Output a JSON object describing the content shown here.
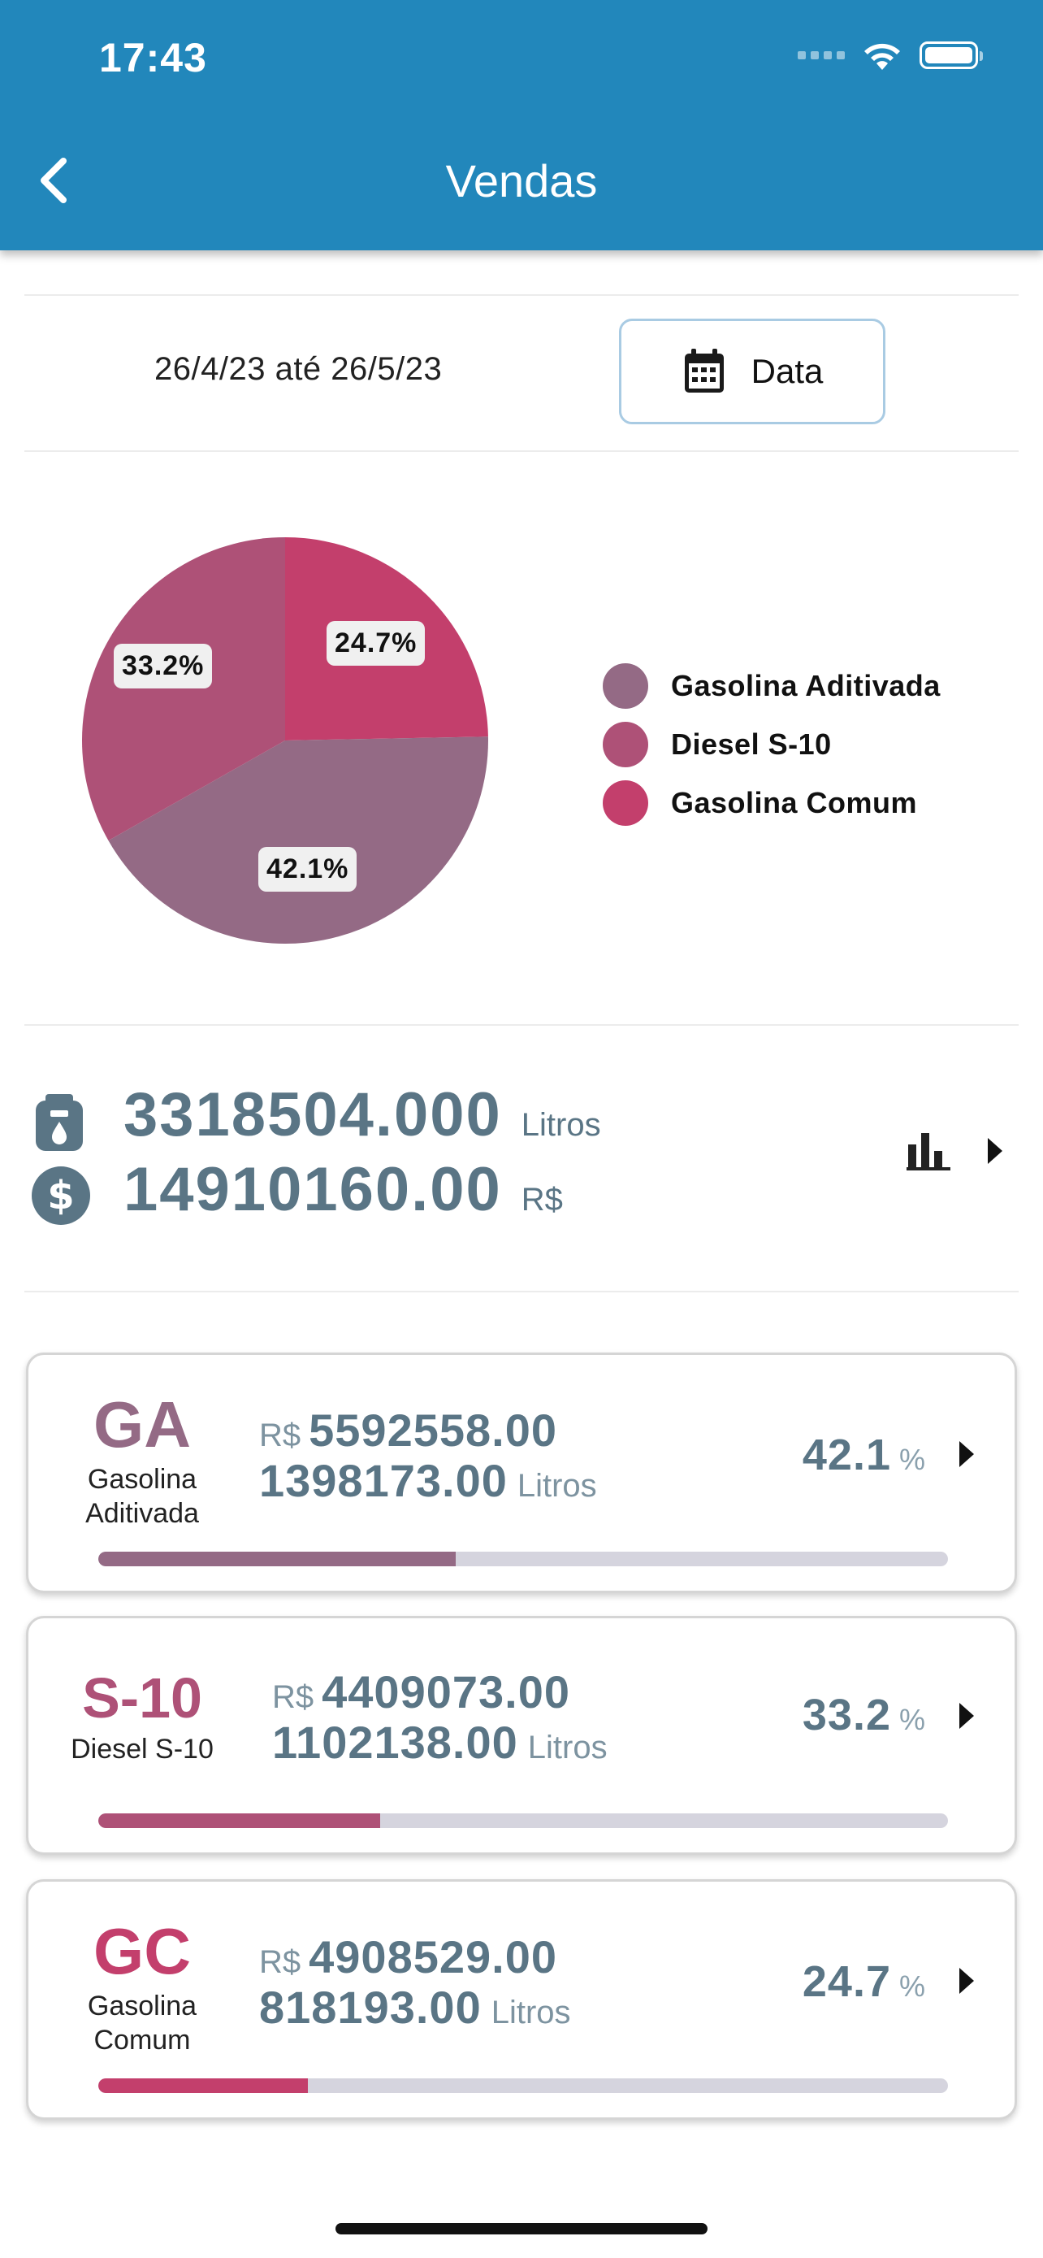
{
  "status_bar": {
    "time": "17:43"
  },
  "header": {
    "title": "Vendas",
    "back_icon": "chevron-left-icon"
  },
  "filter": {
    "date_range": "26/4/23 até 26/5/23",
    "date_button_label": "Data",
    "date_button_icon": "calendar-icon"
  },
  "chart_data": {
    "type": "pie",
    "slices": [
      {
        "label": "Gasolina Aditivada",
        "value": 42.1,
        "display": "42.1%",
        "color": "#946a85"
      },
      {
        "label": "Diesel S-10",
        "value": 33.2,
        "display": "33.2%",
        "color": "#ae5177"
      },
      {
        "label": "Gasolina Comum",
        "value": 24.7,
        "display": "24.7%",
        "color": "#c33f6c"
      }
    ],
    "legend_position": "right"
  },
  "totals": {
    "volume": "3318504.000",
    "volume_unit": "Litros",
    "volume_icon": "fuel-pump-icon",
    "revenue": "14910160.00",
    "revenue_unit": "R$",
    "revenue_icon": "dollar-circle-icon",
    "chart_icon": "bar-chart-icon"
  },
  "products": [
    {
      "code": "GA",
      "name_line1": "Gasolina",
      "name_line2": "Aditivada",
      "currency": "R$",
      "revenue": "5592558.00",
      "volume": "1398173.00",
      "volume_unit": "Litros",
      "percent": "42.1",
      "percent_unit": "%",
      "share": 0.421,
      "color": "#946a85"
    },
    {
      "code": "S-10",
      "name_line1": "Diesel S-10",
      "name_line2": "",
      "currency": "R$",
      "revenue": "4409073.00",
      "volume": "1102138.00",
      "volume_unit": "Litros",
      "percent": "33.2",
      "percent_unit": "%",
      "share": 0.332,
      "color": "#ae5177"
    },
    {
      "code": "GC",
      "name_line1": "Gasolina",
      "name_line2": "Comum",
      "currency": "R$",
      "revenue": "4908529.00",
      "volume": "818193.00",
      "volume_unit": "Litros",
      "percent": "24.7",
      "percent_unit": "%",
      "share": 0.247,
      "color": "#c33f6c"
    }
  ]
}
